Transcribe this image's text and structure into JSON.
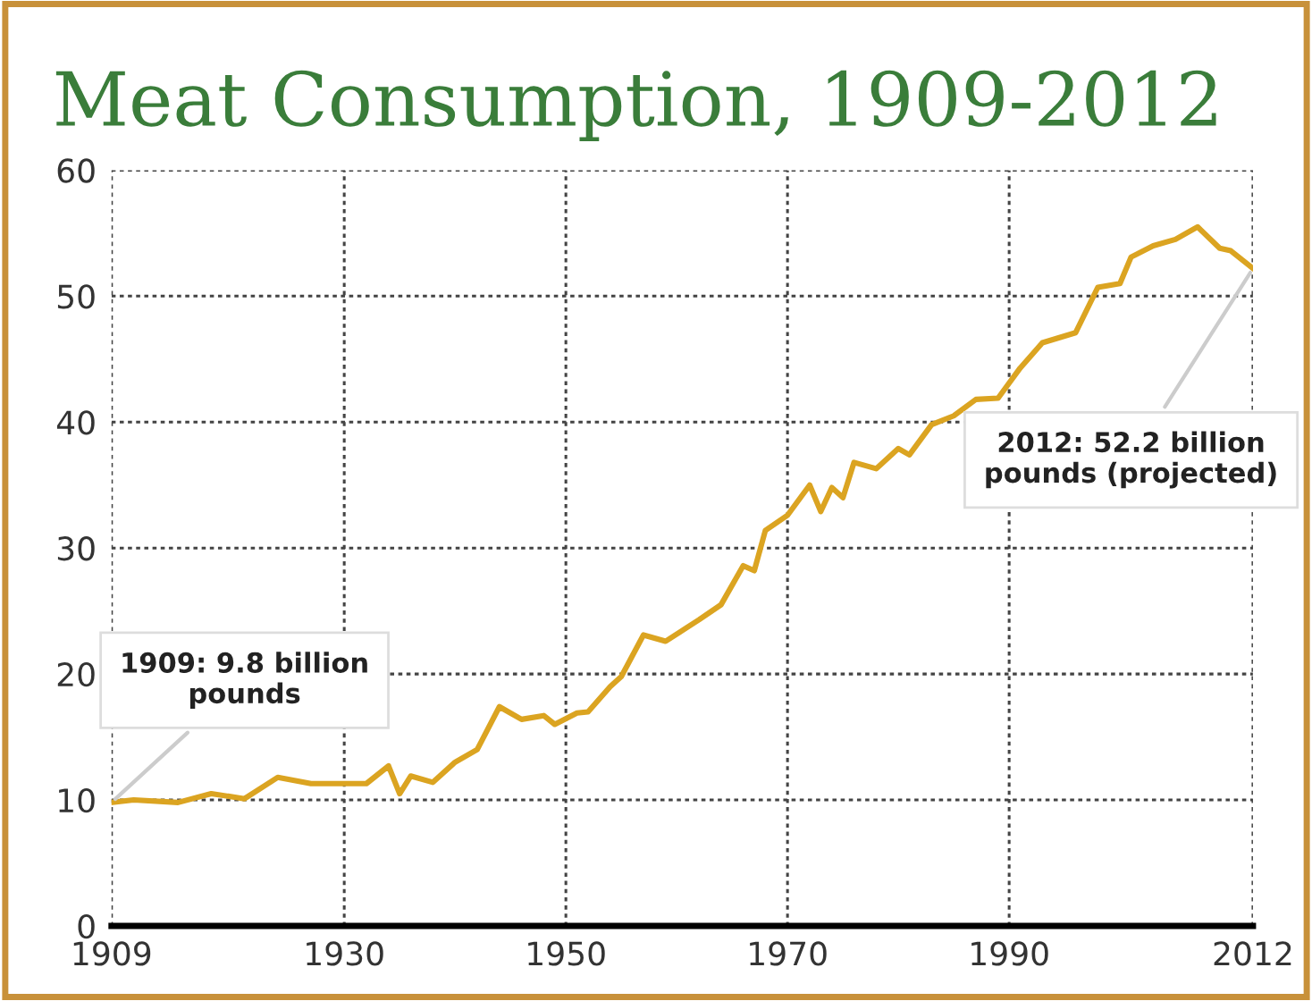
{
  "chart_data": {
    "type": "line",
    "title": "Meat Consumption, 1909-2012",
    "x": [
      1909,
      1911,
      1915,
      1918,
      1921,
      1924,
      1927,
      1932,
      1934,
      1935,
      1936,
      1938,
      1940,
      1942,
      1944,
      1946,
      1948,
      1949,
      1951,
      1952,
      1954,
      1955,
      1957,
      1959,
      1962,
      1964,
      1966,
      1967,
      1968,
      1970,
      1972,
      1973,
      1974,
      1975,
      1976,
      1978,
      1980,
      1981,
      1983,
      1985,
      1987,
      1989,
      1991,
      1993,
      1996,
      1998,
      2000,
      2001,
      2003,
      2005,
      2007,
      2009,
      2010,
      2012
    ],
    "series": [
      {
        "color": "#dba421",
        "values": [
          9.8,
          10.0,
          9.8,
          10.5,
          10.1,
          11.8,
          11.3,
          11.3,
          12.7,
          10.5,
          11.9,
          11.4,
          13.0,
          14.0,
          17.4,
          16.4,
          16.7,
          16.0,
          16.9,
          17.0,
          19.0,
          19.8,
          23.1,
          22.6,
          24.3,
          25.5,
          28.6,
          28.2,
          31.4,
          32.6,
          35.0,
          32.9,
          34.8,
          34.0,
          36.8,
          36.3,
          37.9,
          37.4,
          39.8,
          40.5,
          41.8,
          41.9,
          44.3,
          46.3,
          47.1,
          50.7,
          51.0,
          53.1,
          54.0,
          54.5,
          55.5,
          53.8,
          53.6,
          52.2
        ]
      }
    ],
    "xlim": [
      1909,
      2012
    ],
    "xticks": [
      1909,
      1930,
      1950,
      1970,
      1990,
      2012
    ],
    "ylim": [
      0,
      60
    ],
    "yticks": [
      0,
      10,
      20,
      30,
      40,
      50,
      60
    ],
    "grid": true,
    "line_style": "solid",
    "marker": "none",
    "annotations": [
      {
        "text": "1909: 9.8 billion\npounds",
        "x": 1909,
        "y": 9.8
      },
      {
        "text": "2012: 52.2 billion\npounds (projected)",
        "x": 2012,
        "y": 52.2
      }
    ]
  }
}
